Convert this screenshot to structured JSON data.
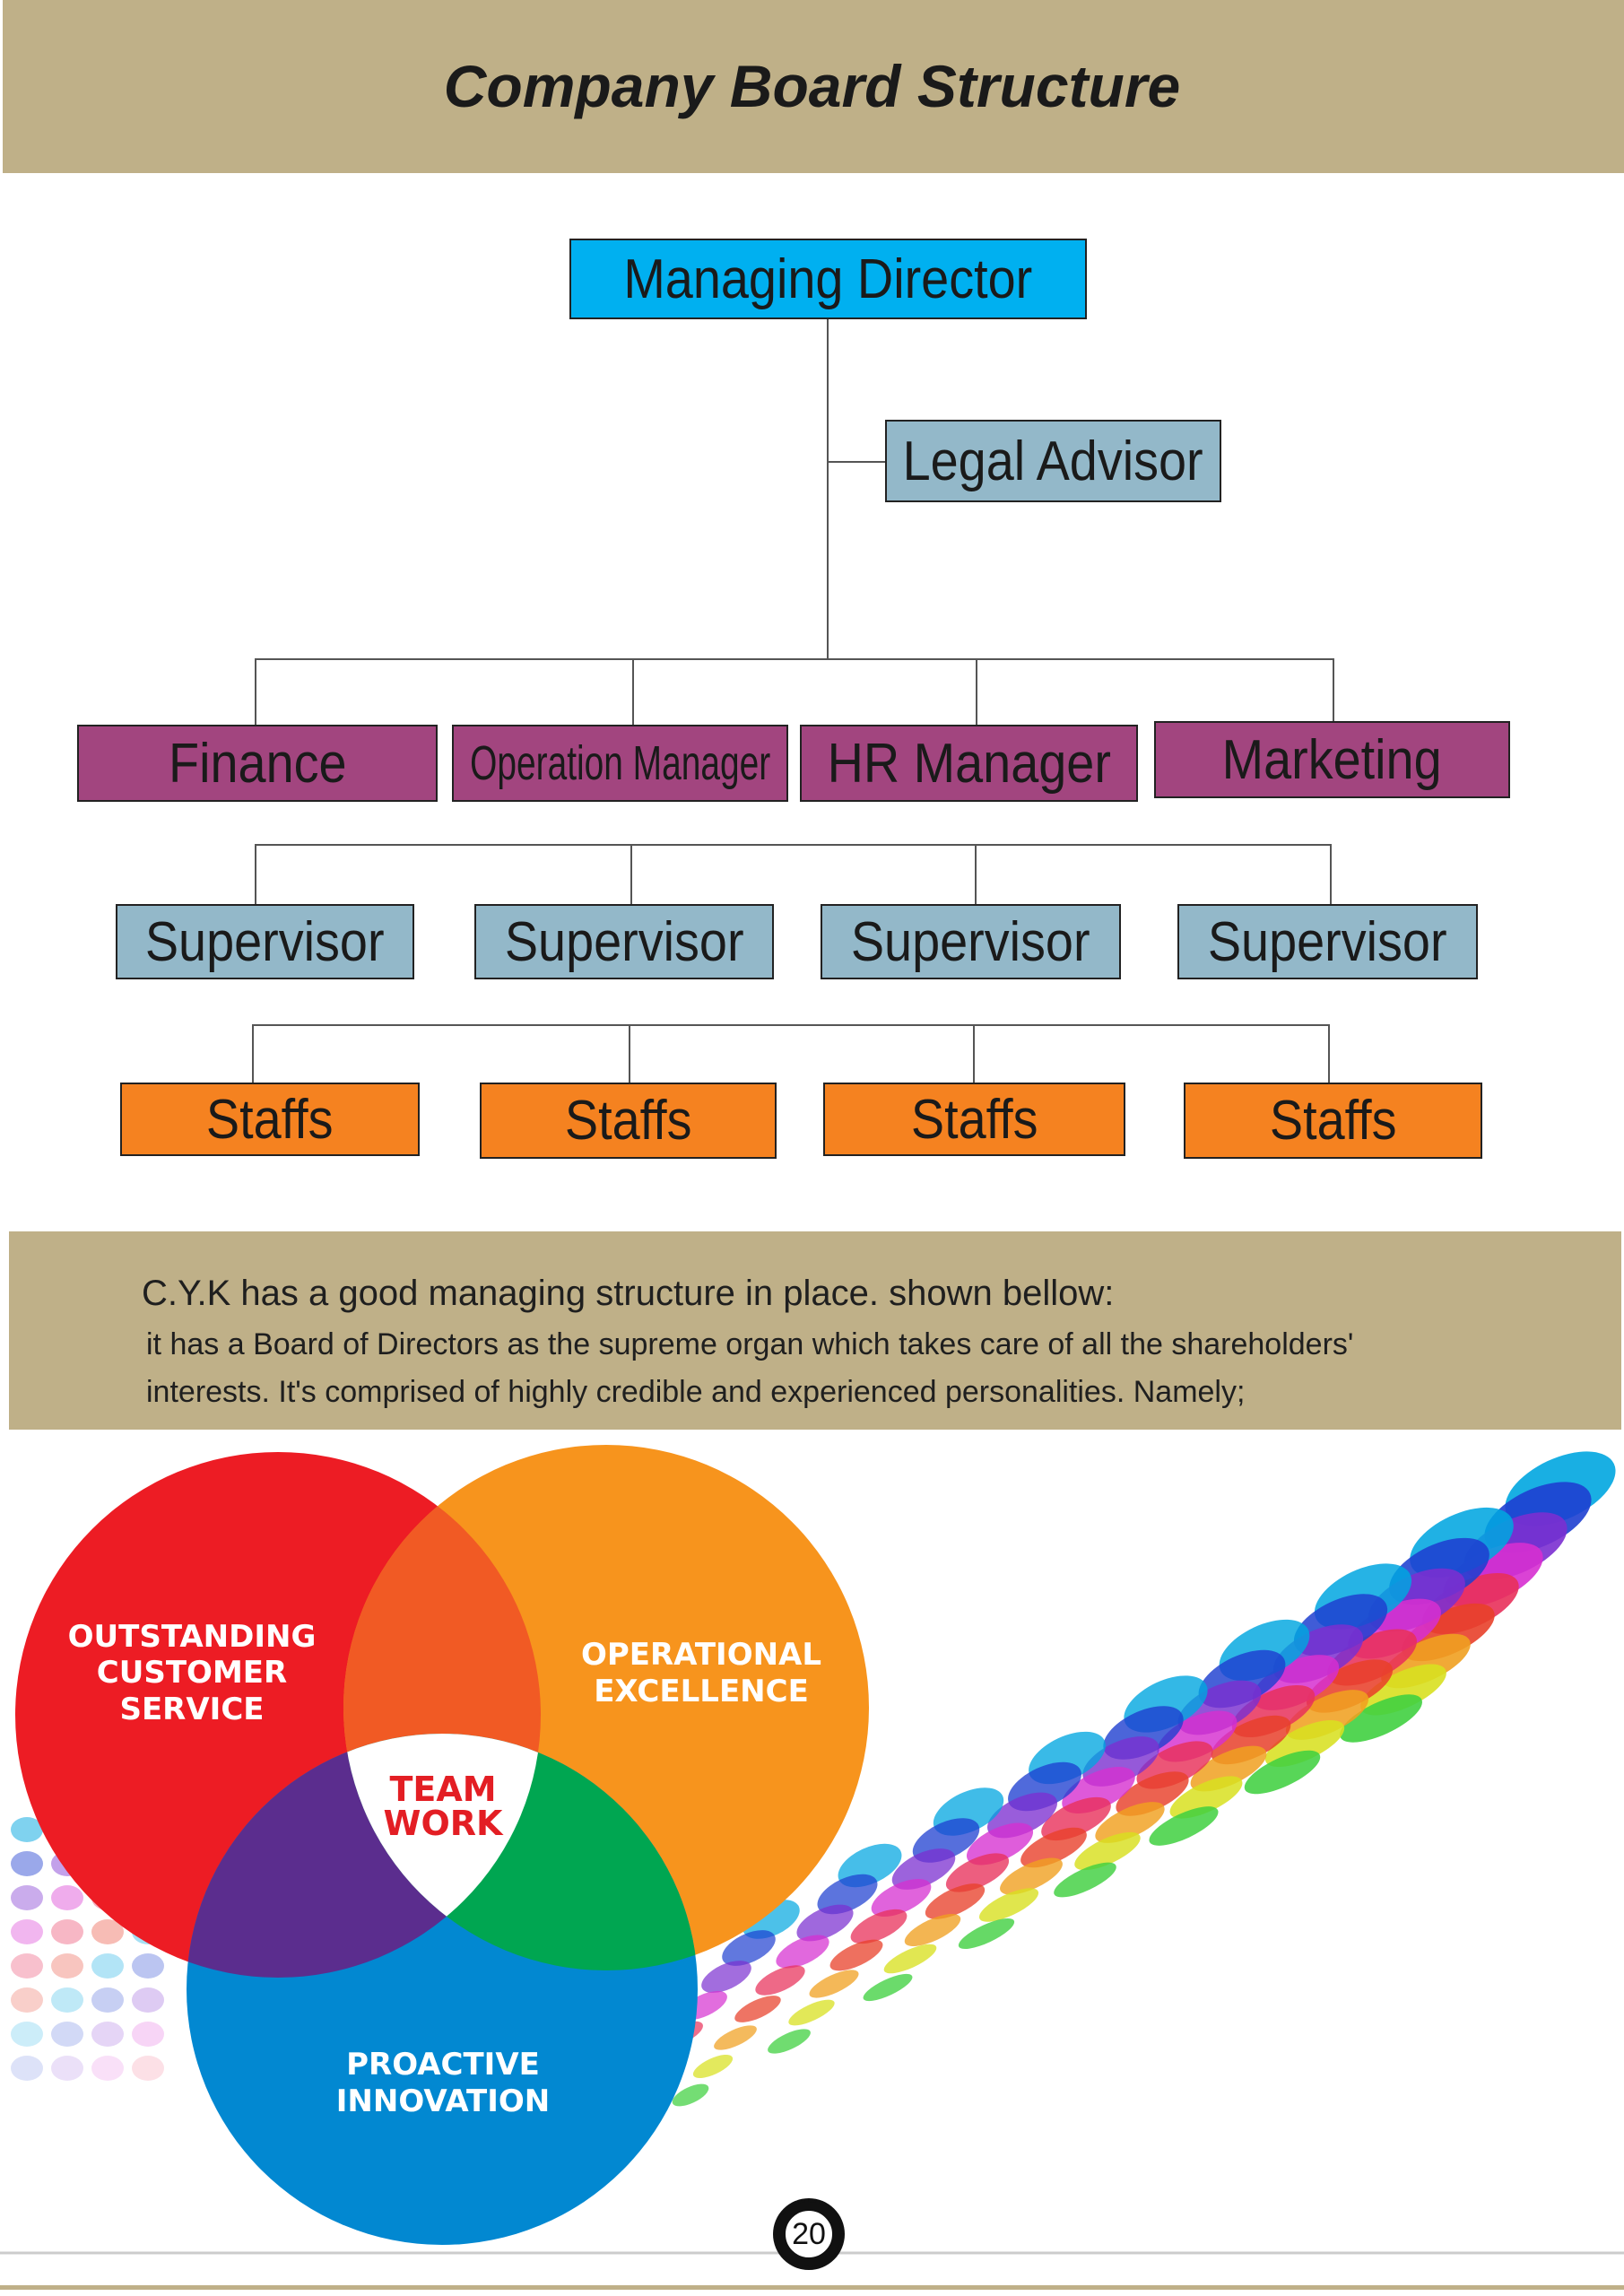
{
  "header": {
    "title": "Company Board Structure"
  },
  "org_chart": {
    "top": "Managing Director",
    "advisor": "Legal Advisor",
    "departments": [
      "Finance",
      "Operation Manager",
      "HR Manager",
      "Marketing"
    ],
    "supervisors": [
      "Supervisor",
      "Supervisor",
      "Supervisor",
      "Supervisor"
    ],
    "staffs": [
      "Staffs",
      "Staffs",
      "Staffs",
      "Staffs"
    ],
    "colors": {
      "top": "#00b0f0",
      "advisor": "#93b8c9",
      "departments": "#a2457f",
      "supervisors": "#93b8c9",
      "staffs": "#f58220"
    }
  },
  "intro": {
    "line1": "C.Y.K has a good managing structure in place. shown bellow:",
    "line2": "it has a Board of Directors as the supreme organ which takes care of all the shareholders'",
    "line3": "interests. It's comprised of highly credible and experienced personalities. Namely;"
  },
  "venn": {
    "red_lines": [
      "OUTSTANDING",
      "CUSTOMER",
      "SERVICE"
    ],
    "orange_lines": [
      "OPERATIONAL",
      "EXCELLENCE"
    ],
    "blue_lines": [
      "PROACTIVE",
      "INNOVATION"
    ],
    "center_lines": [
      "TEAM",
      "WORK"
    ]
  },
  "footer": {
    "page_number": "20"
  }
}
